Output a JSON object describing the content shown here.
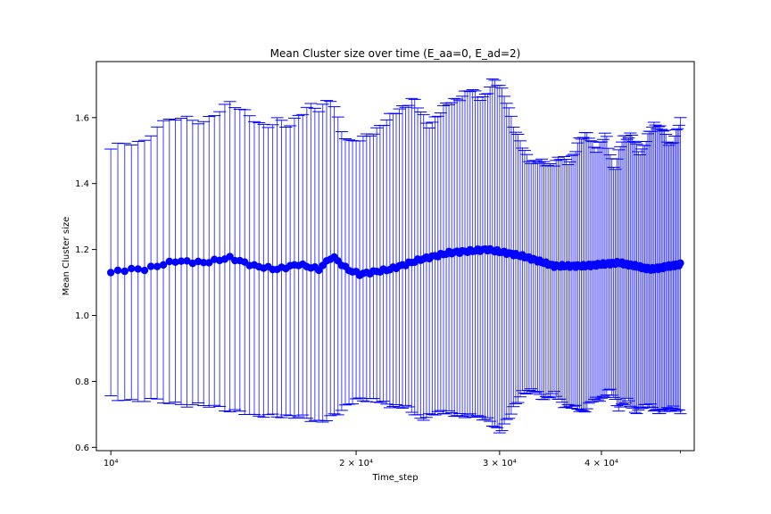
{
  "chart_data": {
    "type": "scatter",
    "title": "Mean Cluster size over time (E_aa=0, E_ad=2)",
    "xlabel": "Time_step",
    "ylabel": "Mean Cluster size",
    "xscale": "log",
    "xlim": [
      9600,
      52000
    ],
    "ylim": [
      0.59,
      1.77
    ],
    "x_ticks": [
      {
        "value": 10000,
        "label": "10⁴"
      },
      {
        "value": 20000,
        "label": "2 × 10⁴"
      },
      {
        "value": 30000,
        "label": "3 × 10⁴"
      },
      {
        "value": 40000,
        "label": "4 × 10⁴"
      }
    ],
    "y_ticks": [
      0.6,
      0.8,
      1.0,
      1.2,
      1.4,
      1.6
    ],
    "grid": false,
    "legend": "none",
    "colors": {
      "marker": "#0000ff",
      "errorbar": "#0000ff",
      "axis": "#000000"
    },
    "series": [
      {
        "x_start": 10000,
        "x_end": 50000,
        "x_step": 200,
        "mean_keypoints": [
          [
            10000,
            1.13
          ],
          [
            10500,
            1.14
          ],
          [
            11000,
            1.14
          ],
          [
            12000,
            1.165
          ],
          [
            13000,
            1.16
          ],
          [
            14000,
            1.175
          ],
          [
            15000,
            1.15
          ],
          [
            16000,
            1.14
          ],
          [
            17000,
            1.155
          ],
          [
            18000,
            1.14
          ],
          [
            18700,
            1.18
          ],
          [
            19500,
            1.14
          ],
          [
            20200,
            1.125
          ],
          [
            22000,
            1.14
          ],
          [
            24000,
            1.17
          ],
          [
            26000,
            1.19
          ],
          [
            29000,
            1.2
          ],
          [
            32000,
            1.18
          ],
          [
            35000,
            1.15
          ],
          [
            38000,
            1.15
          ],
          [
            42000,
            1.16
          ],
          [
            46000,
            1.14
          ],
          [
            50000,
            1.155
          ]
        ],
        "upper_keypoints": [
          [
            10000,
            1.5
          ],
          [
            10400,
            1.52
          ],
          [
            11000,
            1.53
          ],
          [
            11400,
            1.58
          ],
          [
            12000,
            1.595
          ],
          [
            13000,
            1.59
          ],
          [
            13500,
            1.62
          ],
          [
            14000,
            1.64
          ],
          [
            15000,
            1.6
          ],
          [
            15500,
            1.57
          ],
          [
            16000,
            1.59
          ],
          [
            16500,
            1.57
          ],
          [
            17000,
            1.61
          ],
          [
            17500,
            1.64
          ],
          [
            18000,
            1.62
          ],
          [
            18700,
            1.66
          ],
          [
            19200,
            1.56
          ],
          [
            19800,
            1.52
          ],
          [
            20500,
            1.54
          ],
          [
            21500,
            1.58
          ],
          [
            22500,
            1.62
          ],
          [
            23500,
            1.66
          ],
          [
            24500,
            1.57
          ],
          [
            25500,
            1.63
          ],
          [
            26500,
            1.65
          ],
          [
            27500,
            1.69
          ],
          [
            28500,
            1.65
          ],
          [
            29500,
            1.72
          ],
          [
            30500,
            1.66
          ],
          [
            31500,
            1.55
          ],
          [
            32500,
            1.47
          ],
          [
            33500,
            1.47
          ],
          [
            34500,
            1.45
          ],
          [
            35500,
            1.48
          ],
          [
            36500,
            1.46
          ],
          [
            37500,
            1.53
          ],
          [
            38500,
            1.55
          ],
          [
            39500,
            1.5
          ],
          [
            40500,
            1.55
          ],
          [
            41500,
            1.44
          ],
          [
            42500,
            1.54
          ],
          [
            43500,
            1.55
          ],
          [
            44500,
            1.49
          ],
          [
            45500,
            1.54
          ],
          [
            46500,
            1.58
          ],
          [
            47500,
            1.57
          ],
          [
            48500,
            1.51
          ],
          [
            50000,
            1.59
          ]
        ],
        "lower_keypoints": [
          [
            10000,
            0.76
          ],
          [
            10500,
            0.74
          ],
          [
            11500,
            0.74
          ],
          [
            12500,
            0.73
          ],
          [
            13500,
            0.72
          ],
          [
            14500,
            0.71
          ],
          [
            15000,
            0.69
          ],
          [
            16000,
            0.7
          ],
          [
            17000,
            0.69
          ],
          [
            18000,
            0.68
          ],
          [
            19000,
            0.7
          ],
          [
            20000,
            0.75
          ],
          [
            21000,
            0.74
          ],
          [
            22000,
            0.73
          ],
          [
            23000,
            0.72
          ],
          [
            24000,
            0.69
          ],
          [
            25000,
            0.7
          ],
          [
            26000,
            0.71
          ],
          [
            27000,
            0.69
          ],
          [
            28000,
            0.7
          ],
          [
            29000,
            0.68
          ],
          [
            30000,
            0.65
          ],
          [
            31000,
            0.7
          ],
          [
            32000,
            0.77
          ],
          [
            33000,
            0.77
          ],
          [
            34000,
            0.75
          ],
          [
            35000,
            0.76
          ],
          [
            36000,
            0.73
          ],
          [
            37000,
            0.72
          ],
          [
            38000,
            0.71
          ],
          [
            39000,
            0.74
          ],
          [
            40000,
            0.75
          ],
          [
            41000,
            0.77
          ],
          [
            42000,
            0.72
          ],
          [
            43000,
            0.74
          ],
          [
            44000,
            0.71
          ],
          [
            45000,
            0.72
          ],
          [
            46000,
            0.73
          ],
          [
            47000,
            0.7
          ],
          [
            48000,
            0.72
          ],
          [
            50000,
            0.71
          ]
        ]
      }
    ]
  }
}
